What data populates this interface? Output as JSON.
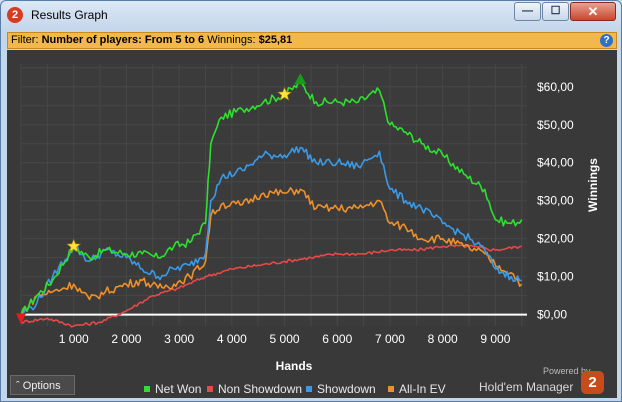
{
  "window": {
    "title": "Results Graph",
    "app_icon_text": "2"
  },
  "filter": {
    "prefix": "Filter:",
    "value": "Number of players: From 5 to 6",
    "winnings_label": "Winnings:",
    "winnings_value": "$25,81"
  },
  "options_label": "Options",
  "branding": {
    "powered_by": "Powered by",
    "name": "Hold'em Manager",
    "logo_text": "2"
  },
  "chart_data": {
    "type": "line",
    "xlabel": "Hands",
    "ylabel": "Winnings",
    "xlim": [
      0,
      9600
    ],
    "ylim": [
      -3,
      66
    ],
    "x_ticks": [
      1000,
      2000,
      3000,
      4000,
      5000,
      6000,
      7000,
      8000,
      9000
    ],
    "x_tick_labels": [
      "1 000",
      "2 000",
      "3 000",
      "4 000",
      "5 000",
      "6 000",
      "7 000",
      "8 000",
      "9 000"
    ],
    "y_ticks": [
      0,
      10,
      20,
      30,
      40,
      50,
      60
    ],
    "y_tick_labels": [
      "$0,00",
      "$10,00",
      "$20,00",
      "$30,00",
      "$40,00",
      "$50,00",
      "$60,00"
    ],
    "grid": true,
    "zero_line_color": "#ffffff",
    "legend_position": "bottom",
    "series": [
      {
        "name": "Net Won",
        "color": "#2ee02e",
        "x": [
          0,
          300,
          600,
          1000,
          1300,
          1600,
          2000,
          2300,
          2600,
          2900,
          3200,
          3500,
          3600,
          3800,
          4200,
          4600,
          5000,
          5300,
          5600,
          6000,
          6400,
          6800,
          7000,
          7300,
          7600,
          8000,
          8400,
          8800,
          9000,
          9300,
          9500
        ],
        "y": [
          0,
          5,
          9,
          18,
          15,
          17,
          16,
          16,
          15,
          18,
          19,
          24,
          45,
          52,
          54,
          56,
          58,
          61,
          56,
          56,
          56,
          59,
          50,
          48,
          45,
          42,
          37,
          33,
          25,
          24,
          25
        ]
      },
      {
        "name": "Non Showdown",
        "color": "#e84848",
        "x": [
          0,
          500,
          1000,
          1500,
          2000,
          2500,
          3000,
          3500,
          4000,
          4500,
          5000,
          5500,
          6000,
          6500,
          7000,
          7500,
          8000,
          8500,
          9000,
          9500
        ],
        "y": [
          -2,
          -1,
          -3,
          -2,
          1,
          5,
          7,
          10,
          12,
          13,
          14,
          15,
          16,
          16,
          17,
          17,
          18,
          18,
          17,
          18
        ]
      },
      {
        "name": "Showdown",
        "color": "#3a9ae8",
        "x": [
          0,
          300,
          600,
          1000,
          1300,
          1600,
          2000,
          2300,
          2600,
          2900,
          3200,
          3500,
          3600,
          3800,
          4200,
          4600,
          5000,
          5300,
          5600,
          6000,
          6400,
          6800,
          7000,
          7300,
          7600,
          8000,
          8400,
          8800,
          9000,
          9300,
          9500
        ],
        "y": [
          0,
          3,
          10,
          18,
          14,
          17,
          15,
          12,
          10,
          12,
          13,
          16,
          30,
          36,
          38,
          42,
          42,
          44,
          40,
          40,
          39,
          43,
          33,
          30,
          28,
          24,
          21,
          17,
          12,
          10,
          9
        ]
      },
      {
        "name": "All-In EV",
        "color": "#f0902a",
        "x": [
          0,
          300,
          600,
          1000,
          1300,
          1600,
          2000,
          2300,
          2600,
          2900,
          3200,
          3500,
          3600,
          3800,
          4200,
          4600,
          5000,
          5300,
          5600,
          6000,
          6400,
          6800,
          7000,
          7300,
          7600,
          8000,
          8400,
          8800,
          9000,
          9300,
          9500
        ],
        "y": [
          0,
          5,
          6,
          8,
          4,
          6,
          8,
          9,
          7,
          8,
          10,
          14,
          26,
          29,
          29,
          32,
          32,
          33,
          28,
          28,
          28,
          30,
          24,
          23,
          20,
          20,
          18,
          16,
          13,
          11,
          8
        ]
      }
    ],
    "markers": [
      {
        "type": "star",
        "color": "#ffe23a",
        "x": 1000,
        "y": 18
      },
      {
        "type": "star",
        "color": "#ffe23a",
        "x": 5000,
        "y": 58
      },
      {
        "type": "triangle-up",
        "color": "#1a9a1a",
        "x": 5300,
        "y": 62
      },
      {
        "type": "triangle-down",
        "color": "#e02020",
        "x": 0,
        "y": -1
      }
    ]
  }
}
